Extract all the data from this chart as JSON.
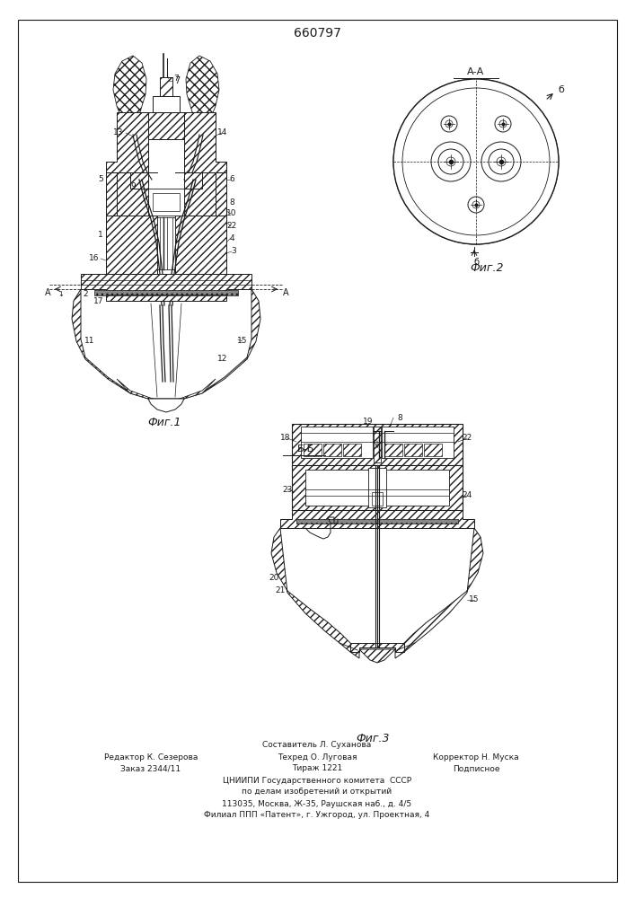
{
  "patent_number": "660797",
  "bg": "#ffffff",
  "lc": "#1a1a1a",
  "fig1_caption": "Фиг.1",
  "fig2_caption": "Фиг.2",
  "fig3_caption": "Фиг.3",
  "section_aa": "А-А",
  "section_bb": "Б-Б",
  "footer": {
    "line1_center": "Составитель Л. Суханова",
    "line2_left": "Редактор К. Сезерова",
    "line2_mid": "Техред О. Луговая",
    "line2_right": "Корректор Н. Муска",
    "line3_left": "Заказ 2344/11",
    "line3_mid": "Тираж 1221",
    "line3_right": "Подписное",
    "line4": "ЦНИИПИ Государственного комитета  СССР",
    "line5": "по делам изобретений и открытий",
    "line6": "113035, Москва, Ж-35, Раушская наб., д. 4/5",
    "line7": "Филиал ППП «Патент», г. Ужгород, ул. Проектная, 4"
  }
}
